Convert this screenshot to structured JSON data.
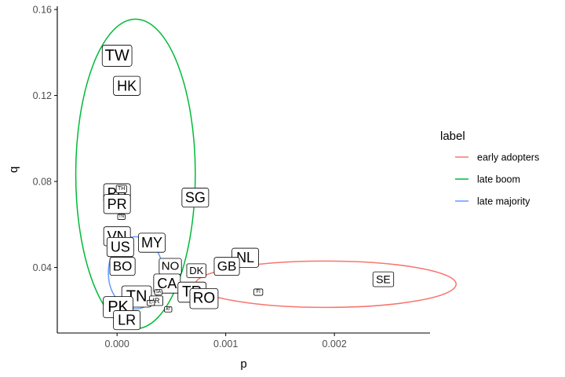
{
  "chart_data": {
    "type": "scatter",
    "xlabel": "p",
    "ylabel": "q",
    "xlim": [
      -0.00055,
      0.00288
    ],
    "ylim": [
      0.0095,
      0.1615
    ],
    "x_ticks": [
      0,
      0.001,
      0.002
    ],
    "x_tick_labels": [
      "0.000",
      "0.001",
      "0.002"
    ],
    "y_ticks": [
      0.04,
      0.08,
      0.12,
      0.16
    ],
    "y_tick_labels": [
      "0.04",
      "0.08",
      "0.12",
      "0.16"
    ],
    "grid": false,
    "legend": {
      "title": "label",
      "placement": "right",
      "entries": [
        {
          "name": "early adopters",
          "color": "#F8766D"
        },
        {
          "name": "late boom",
          "color": "#00BA38"
        },
        {
          "name": "late majority",
          "color": "#619CFF"
        }
      ]
    },
    "ellipses": [
      {
        "series": "early adopters",
        "cx": 0.00192,
        "cy": 0.0322,
        "rx": 0.0012,
        "ry": 0.0108,
        "color": "#F8766D"
      },
      {
        "series": "late boom",
        "cx": 0.00017,
        "cy": 0.0835,
        "rx": 0.00055,
        "ry": 0.072,
        "color": "#00BA38"
      },
      {
        "series": "late majority",
        "cx": 0.00017,
        "cy": 0.0375,
        "rx": 0.00025,
        "ry": 0.0168,
        "color": "#619CFF"
      }
    ],
    "points": [
      {
        "label": "TW",
        "x": 0.0,
        "y": 0.1385,
        "size": 20
      },
      {
        "label": "HK",
        "x": 9e-05,
        "y": 0.1245,
        "size": 18
      },
      {
        "label": "SG",
        "x": 0.00072,
        "y": 0.0725,
        "size": 18
      },
      {
        "label": "PH",
        "x": 0.0,
        "y": 0.0745,
        "size": 18
      },
      {
        "label": "PR",
        "x": 0.0,
        "y": 0.0695,
        "size": 18
      },
      {
        "label": "VN",
        "x": 0.0,
        "y": 0.0545,
        "size": 18
      },
      {
        "label": "MY",
        "x": 0.00032,
        "y": 0.0515,
        "size": 18
      },
      {
        "label": "US",
        "x": 3e-05,
        "y": 0.0495,
        "size": 18
      },
      {
        "label": "NL",
        "x": 0.00118,
        "y": 0.0445,
        "size": 18
      },
      {
        "label": "BO",
        "x": 5e-05,
        "y": 0.0405,
        "size": 17
      },
      {
        "label": "NO",
        "x": 0.00049,
        "y": 0.0405,
        "size": 15
      },
      {
        "label": "GB",
        "x": 0.00101,
        "y": 0.0405,
        "size": 17
      },
      {
        "label": "DK",
        "x": 0.00073,
        "y": 0.0385,
        "size": 13
      },
      {
        "label": "SE",
        "x": 0.00245,
        "y": 0.0345,
        "size": 14
      },
      {
        "label": "CA",
        "x": 0.00046,
        "y": 0.0325,
        "size": 18
      },
      {
        "label": "TR",
        "x": 0.00069,
        "y": 0.0285,
        "size": 19
      },
      {
        "label": "RO",
        "x": 0.0008,
        "y": 0.0255,
        "size": 19
      },
      {
        "label": "TN",
        "x": 0.00018,
        "y": 0.0265,
        "size": 20
      },
      {
        "label": "PK",
        "x": 1e-05,
        "y": 0.0215,
        "size": 20
      },
      {
        "label": "LR",
        "x": 9e-05,
        "y": 0.0155,
        "size": 18
      },
      {
        "label": "FI",
        "x": 0.0013,
        "y": 0.0285,
        "size": 6
      },
      {
        "label": "TH",
        "x": 4e-05,
        "y": 0.0765,
        "size": 7
      },
      {
        "label": "TN",
        "x": 4e-05,
        "y": 0.0635,
        "size": 5
      },
      {
        "label": "SA",
        "x": 0.00038,
        "y": 0.0285,
        "size": 5
      },
      {
        "label": "IR",
        "x": 0.00036,
        "y": 0.0245,
        "size": 9
      },
      {
        "label": "AT",
        "x": 0.00047,
        "y": 0.0205,
        "size": 5
      },
      {
        "label": "ID",
        "x": 0.00031,
        "y": 0.0235,
        "size": 5
      }
    ]
  }
}
